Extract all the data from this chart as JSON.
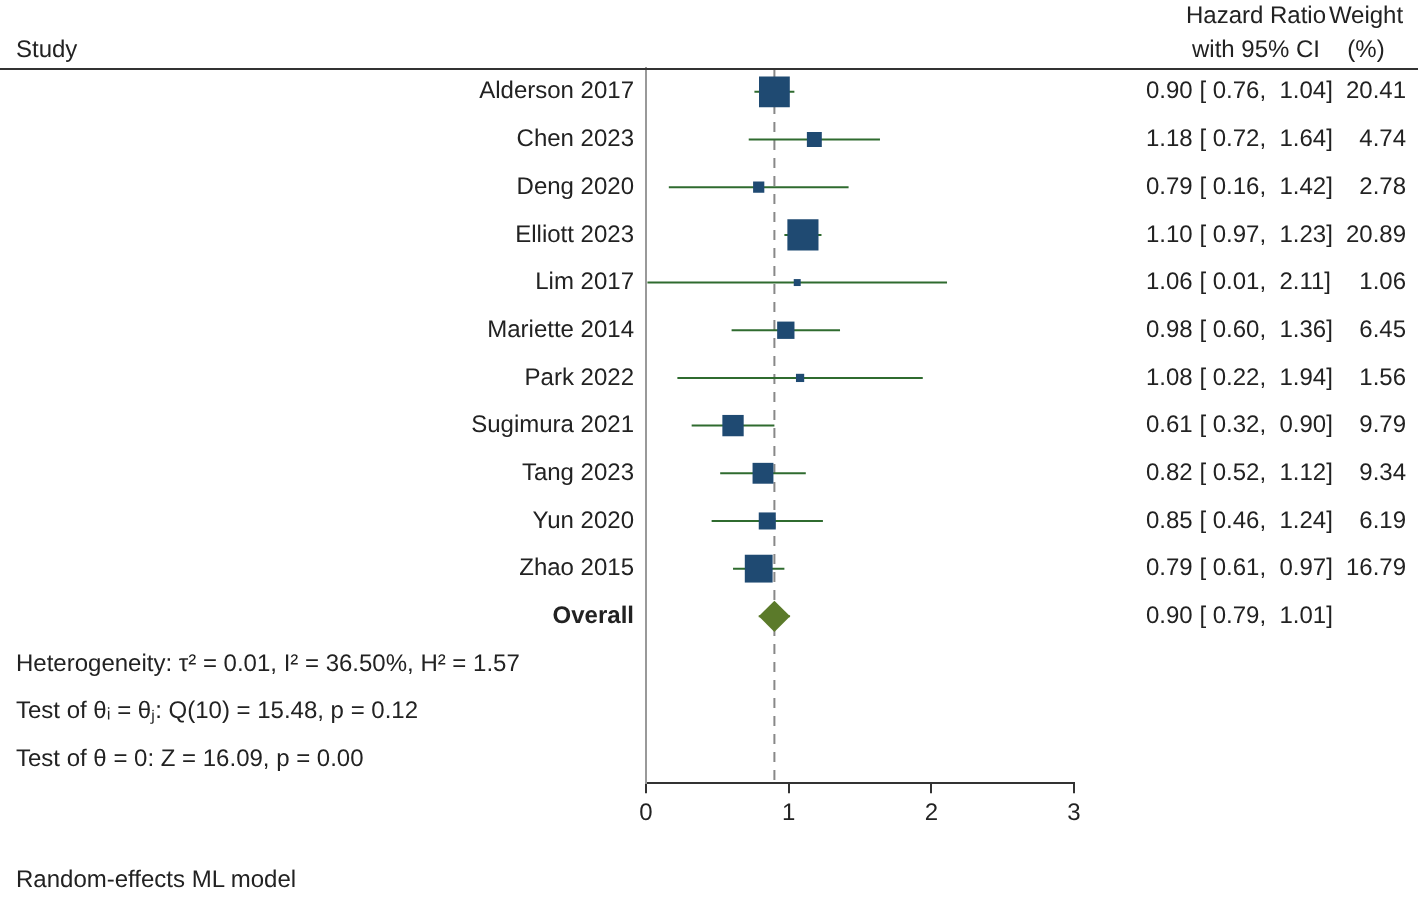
{
  "chart_data": {
    "type": "scatter",
    "orientation": "horizontal",
    "categories": [
      "Alderson 2017",
      "Chen 2023",
      "Deng 2020",
      "Elliott 2023",
      "Lim 2017",
      "Mariette 2014",
      "Park 2022",
      "Sugimura 2021",
      "Tang 2023",
      "Yun 2020",
      "Zhao 2015",
      "Overall",
      null,
      null,
      null
    ],
    "series": [
      {
        "type": "bubble",
        "marker": "square",
        "color": "#1f4a72",
        "values": [
          0.9,
          1.18,
          0.79,
          1.1,
          1.06,
          0.98,
          1.08,
          0.61,
          0.82,
          0.85,
          0.79,
          null,
          null,
          null,
          null
        ],
        "errors": [
          [
            0.76,
            1.04
          ],
          [
            0.72,
            1.64
          ],
          [
            0.16,
            1.42
          ],
          [
            0.97,
            1.23
          ],
          [
            0.01,
            2.11
          ],
          [
            0.6,
            1.36
          ],
          [
            0.22,
            1.94
          ],
          [
            0.32,
            0.9
          ],
          [
            0.52,
            1.12
          ],
          [
            0.46,
            1.24
          ],
          [
            0.61,
            0.97
          ],
          null,
          null,
          null,
          null
        ],
        "sizes": [
          0.98,
          0.23,
          0.13,
          1,
          0.05,
          0.31,
          0.07,
          0.47,
          0.45,
          0.3,
          0.8,
          null,
          null,
          null,
          null
        ],
        "value_labels": [
          "0.90 [ 0.76,  1.04]",
          "1.18 [ 0.72,  1.64]",
          "0.79 [ 0.16,  1.42]",
          "1.10 [ 0.97,  1.23]",
          "1.06 [ 0.01,  2.11]",
          "0.98 [ 0.60,  1.36]",
          "1.08 [ 0.22,  1.94]",
          "0.61 [ 0.32,  0.90]",
          "0.82 [ 0.52,  1.12]",
          "0.85 [ 0.46,  1.24]",
          "0.79 [ 0.61,  0.97]",
          null,
          null,
          null,
          null
        ]
      },
      {
        "type": "scatter",
        "marker": "diamond",
        "color": "#5b7a2a",
        "values": [
          null,
          null,
          null,
          null,
          null,
          null,
          null,
          null,
          null,
          null,
          null,
          0.9,
          null,
          null,
          null
        ],
        "errors": [
          null,
          null,
          null,
          null,
          null,
          null,
          null,
          null,
          null,
          null,
          null,
          [
            0.79,
            1.01
          ],
          null,
          null,
          null
        ]
      }
    ],
    "xlim": [
      0,
      3
    ],
    "xticks": [
      0,
      1,
      2,
      3
    ],
    "ref_lines": [
      {
        "axis": "x",
        "value": 0.9,
        "line_style": "dashed",
        "color": "#888888"
      }
    ],
    "annotations": [
      "Study",
      "Hazard Ratio\nwith 95% CI",
      "Weight\n(%)",
      "Heterogeneity: τ² = 0.01, I² = 36.50%, H² = 1.57",
      "Test of θᵢ = θⱼ: Q(10) = 15.48, p = 0.12",
      "Test of θ = 0: Z = 16.09, p = 0.00",
      "Random-effects ML model",
      "0.90 [ 0.79,  1.01]",
      "20.41",
      "4.74",
      "2.78",
      "20.89",
      "1.06",
      "6.45",
      "1.56",
      "9.79",
      "9.34",
      "6.19",
      "16.79"
    ],
    "grid": false,
    "legend": false
  }
}
